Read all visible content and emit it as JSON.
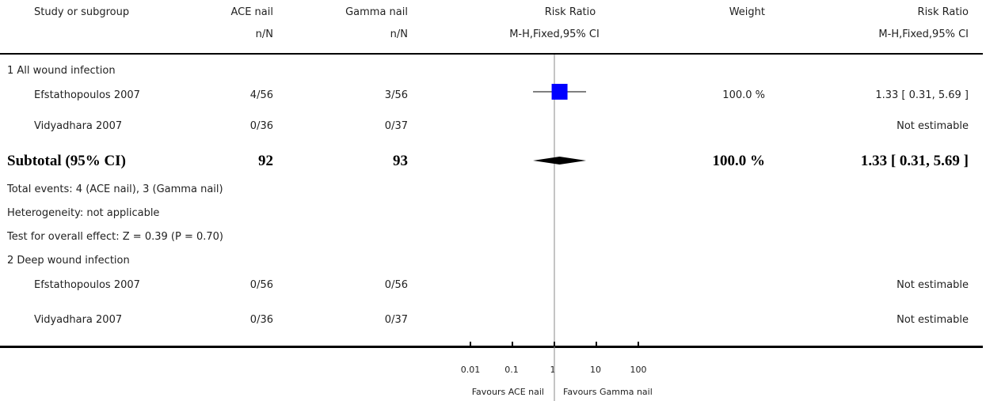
{
  "header": {
    "study": "Study or subgroup",
    "ace_nail": "ACE nail",
    "gamma_nail": "Gamma nail",
    "risk_ratio": "Risk Ratio",
    "weight": "Weight",
    "risk_ratio2": "Risk Ratio",
    "nN1": "n/N",
    "nN2": "n/N",
    "method": "M-H,Fixed,95% CI",
    "method2": "M-H,Fixed,95% CI"
  },
  "groups": [
    {
      "title": "1 All wound infection",
      "studies": [
        {
          "name": "Efstathopoulos 2007",
          "ace": "4/56",
          "gamma": "3/56",
          "weight": "100.0 %",
          "rr": "1.33 [ 0.31, 5.69 ]"
        },
        {
          "name": "Vidyadhara 2007",
          "ace": "0/36",
          "gamma": "0/37",
          "weight": "",
          "rr": "Not estimable"
        }
      ],
      "subtotal": {
        "label": "Subtotal (95% CI)",
        "ace": "92",
        "gamma": "93",
        "weight": "100.0 %",
        "rr": "1.33 [ 0.31, 5.69 ]"
      },
      "notes": [
        "Total events: 4 (ACE nail), 3 (Gamma nail)",
        "Heterogeneity: not applicable",
        "Test for overall effect: Z = 0.39 (P = 0.70)"
      ]
    },
    {
      "title": "2 Deep wound infection",
      "studies": [
        {
          "name": "Efstathopoulos 2007",
          "ace": "0/56",
          "gamma": "0/56",
          "weight": "",
          "rr": "Not estimable"
        },
        {
          "name": "Vidyadhara 2007",
          "ace": "0/36",
          "gamma": "0/37",
          "weight": "",
          "rr": "Not estimable"
        }
      ]
    }
  ],
  "axis": {
    "ticks": [
      "0.01",
      "0.1",
      "1",
      "10",
      "100"
    ],
    "favours_left": "Favours ACE nail",
    "favours_right": "Favours Gamma nail"
  },
  "chart_data": {
    "type": "forest",
    "scale": "log",
    "xlim": [
      0.01,
      100
    ],
    "tick_values": [
      0.01,
      0.1,
      1,
      10,
      100
    ],
    "null_line": 1,
    "points": [
      {
        "study": "Efstathopoulos 2007",
        "estimate": 1.33,
        "ci": [
          0.31,
          5.69
        ],
        "marker": "square",
        "color": "#0000ff"
      }
    ],
    "diamonds": [
      {
        "label": "Subtotal (95% CI)",
        "estimate": 1.33,
        "ci": [
          0.31,
          5.69
        ],
        "color": "#000000"
      }
    ]
  }
}
